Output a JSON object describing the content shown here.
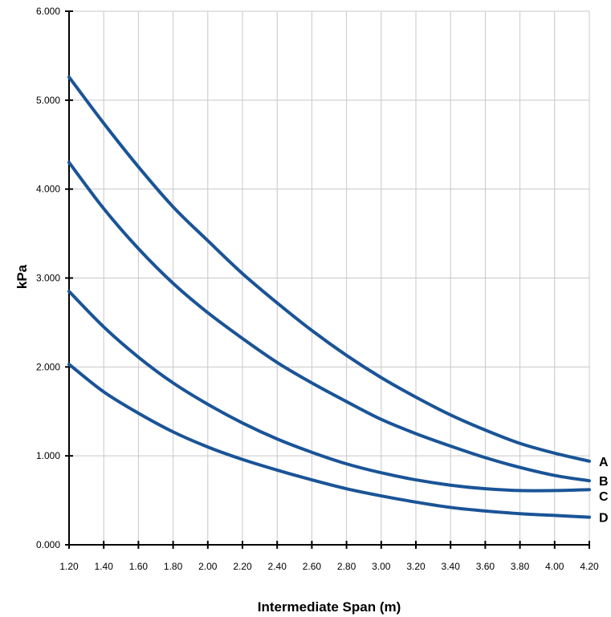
{
  "chart_data": {
    "type": "line",
    "title": "",
    "xlabel": "Intermediate Span (m)",
    "ylabel": "kPa",
    "xlim": [
      1.2,
      4.2
    ],
    "ylim": [
      0,
      6
    ],
    "grid": true,
    "x_ticks": [
      "1.20",
      "1.40",
      "1.60",
      "1.80",
      "2.00",
      "2.20",
      "2.40",
      "2.60",
      "2.80",
      "3.00",
      "3.20",
      "3.40",
      "3.60",
      "3.80",
      "4.00",
      "4.20"
    ],
    "y_ticks": [
      "0.000",
      "1.000",
      "2.000",
      "3.000",
      "4.000",
      "5.000",
      "6.000"
    ],
    "series_color": "#1a5497",
    "grid_color": "#c8c8c8",
    "x": [
      1.2,
      1.4,
      1.6,
      1.8,
      2.0,
      2.2,
      2.4,
      2.6,
      2.8,
      3.0,
      3.2,
      3.4,
      3.6,
      3.8,
      4.0,
      4.2
    ],
    "series": [
      {
        "name": "A",
        "values": [
          5.26,
          4.74,
          4.25,
          3.8,
          3.42,
          3.05,
          2.72,
          2.41,
          2.13,
          1.88,
          1.66,
          1.46,
          1.29,
          1.14,
          1.03,
          0.94
        ]
      },
      {
        "name": "B",
        "values": [
          4.3,
          3.78,
          3.33,
          2.94,
          2.61,
          2.32,
          2.05,
          1.82,
          1.61,
          1.41,
          1.25,
          1.11,
          0.98,
          0.87,
          0.78,
          0.72
        ]
      },
      {
        "name": "C",
        "values": [
          2.85,
          2.45,
          2.11,
          1.82,
          1.58,
          1.37,
          1.19,
          1.04,
          0.91,
          0.81,
          0.73,
          0.67,
          0.63,
          0.61,
          0.61,
          0.62
        ]
      },
      {
        "name": "D",
        "values": [
          2.03,
          1.72,
          1.48,
          1.27,
          1.1,
          0.96,
          0.84,
          0.73,
          0.63,
          0.55,
          0.48,
          0.42,
          0.38,
          0.35,
          0.33,
          0.31
        ]
      }
    ]
  }
}
